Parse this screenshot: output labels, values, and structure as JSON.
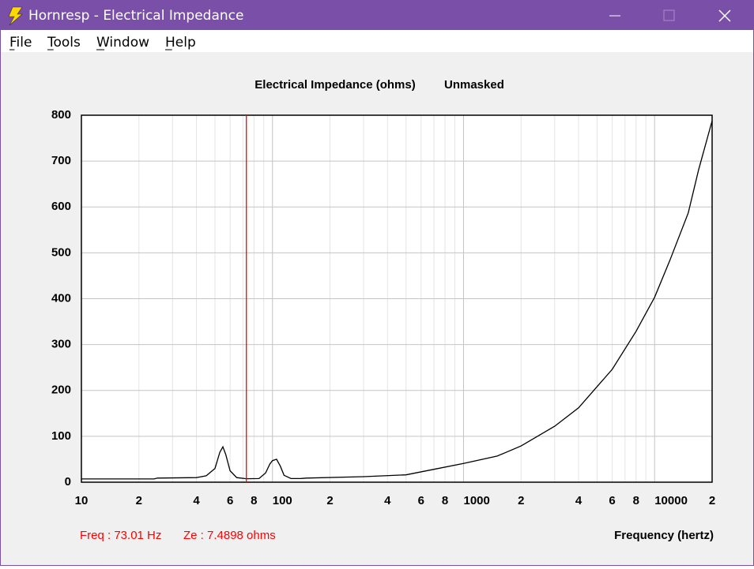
{
  "window": {
    "title": "Hornresp - Electrical Impedance",
    "menu": [
      "File",
      "Tools",
      "Window",
      "Help"
    ]
  },
  "chart_data": {
    "type": "line",
    "title": "Electrical Impedance (ohms)",
    "subtitle": "Unmasked",
    "x_label": "Frequency (hertz)",
    "x_scale": "log",
    "xlim": [
      10,
      20000
    ],
    "xticks": [
      10,
      {
        "value": 20,
        "label": "2"
      },
      {
        "value": 40,
        "label": "4"
      },
      {
        "value": 60,
        "label": "6"
      },
      {
        "value": 80,
        "label": "8"
      },
      100,
      {
        "value": 200,
        "label": "2"
      },
      {
        "value": 400,
        "label": "4"
      },
      {
        "value": 600,
        "label": "6"
      },
      {
        "value": 800,
        "label": "8"
      },
      1000,
      {
        "value": 2000,
        "label": "2"
      },
      {
        "value": 4000,
        "label": "4"
      },
      {
        "value": 6000,
        "label": "6"
      },
      {
        "value": 8000,
        "label": "8"
      },
      10000,
      {
        "value": 20000,
        "label": "2"
      }
    ],
    "x_minor_grid": [
      30,
      50,
      70,
      90,
      300,
      500,
      700,
      900,
      3000,
      5000,
      7000,
      9000
    ],
    "ylim": [
      0,
      800
    ],
    "yticks": [
      0,
      100,
      200,
      300,
      400,
      500,
      600,
      700,
      800
    ],
    "grid": true,
    "color": "#000000",
    "x": [
      10,
      20,
      24,
      25,
      40,
      45,
      50,
      53,
      55,
      57,
      60,
      65,
      73.01,
      85,
      92,
      97,
      100,
      105,
      110,
      115,
      125,
      140,
      150,
      300,
      500,
      700,
      1000,
      1500,
      2000,
      3000,
      4000,
      6000,
      8000,
      10000,
      12000,
      15000,
      17000,
      20000
    ],
    "values": [
      7,
      7,
      7,
      9,
      10,
      14,
      30,
      65,
      77,
      60,
      25,
      10,
      7.4898,
      8,
      20,
      40,
      47,
      50,
      35,
      15,
      8,
      8,
      9,
      12,
      16,
      28,
      41,
      57,
      79,
      122,
      162,
      246,
      329,
      403,
      483,
      587,
      681,
      788
    ],
    "cursor_x": 73.01,
    "cursor_color": "#ff0000",
    "annotations": [
      "Freq : 73.01 Hz",
      "Ze : 7.4898 ohms"
    ]
  }
}
